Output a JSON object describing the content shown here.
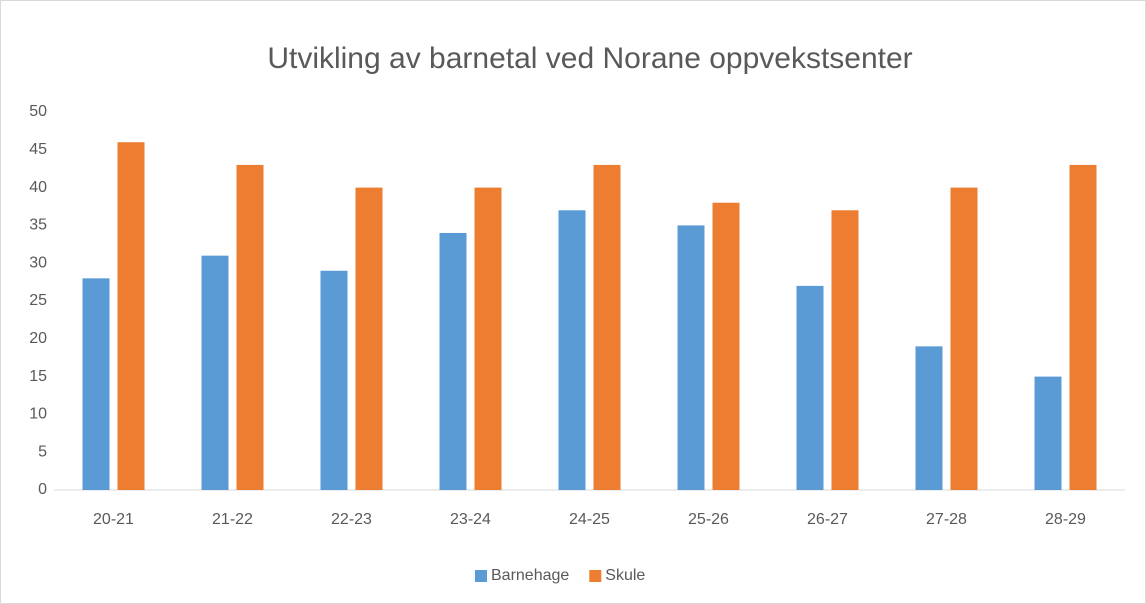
{
  "chart_data": {
    "type": "bar",
    "title": "Utvikling av barnetal ved Norane oppvekstsenter",
    "categories": [
      "20-21",
      "21-22",
      "22-23",
      "23-24",
      "24-25",
      "25-26",
      "26-27",
      "27-28",
      "28-29"
    ],
    "series": [
      {
        "name": "Barnehage",
        "color": "#5b9bd5",
        "values": [
          28,
          31,
          29,
          34,
          37,
          35,
          27,
          19,
          15
        ]
      },
      {
        "name": "Skule",
        "color": "#ed7d31",
        "values": [
          46,
          43,
          40,
          40,
          43,
          38,
          37,
          40,
          43
        ]
      }
    ],
    "ylim": [
      0,
      50
    ],
    "yticks": [
      0,
      5,
      10,
      15,
      20,
      25,
      30,
      35,
      40,
      45,
      50
    ],
    "grid": false,
    "legend": "bottom"
  }
}
